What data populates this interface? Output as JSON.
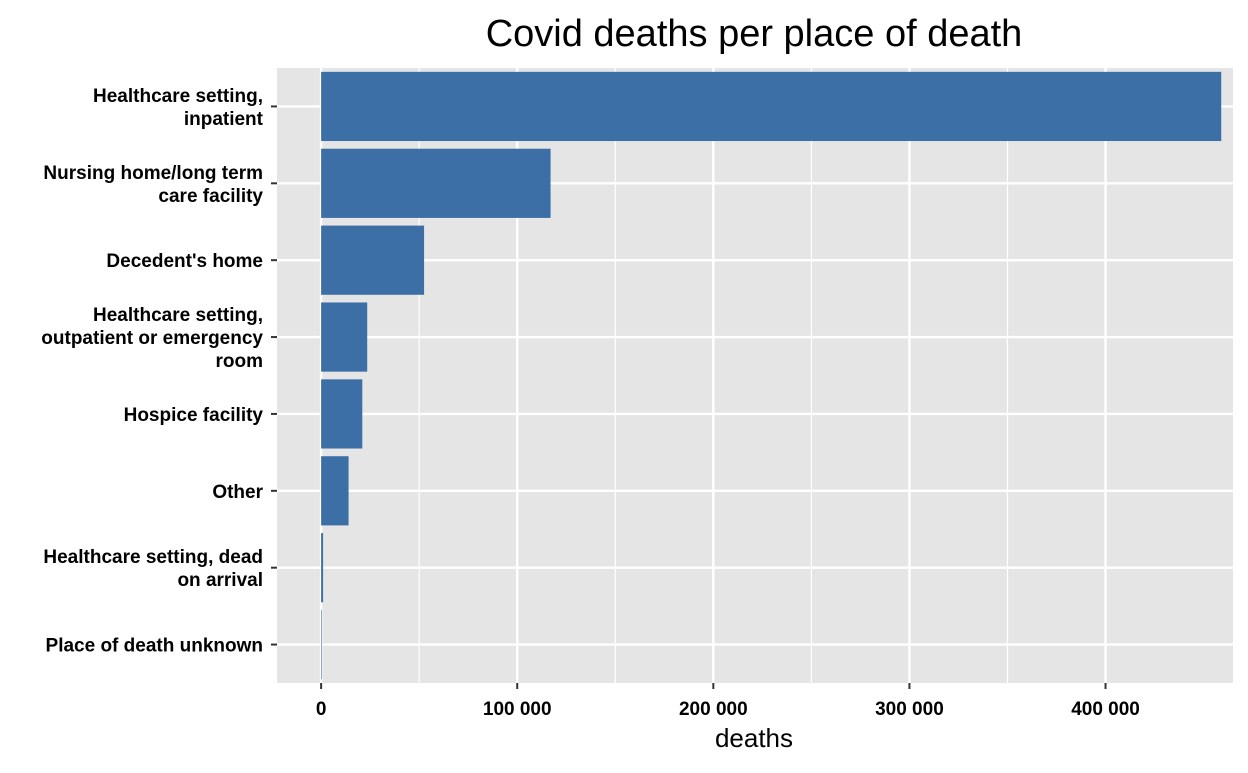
{
  "chart_data": {
    "type": "bar",
    "orientation": "horizontal",
    "title": "Covid deaths per place of death",
    "xlabel": "deaths",
    "ylabel": "",
    "xlim": [
      -22500,
      465000
    ],
    "x_ticks": [
      0,
      100000,
      200000,
      300000,
      400000
    ],
    "x_tick_labels": [
      "0",
      "100 000",
      "200 000",
      "300 000",
      "400 000"
    ],
    "categories": [
      [
        "Healthcare setting,",
        "inpatient"
      ],
      [
        "Nursing home/long term",
        "care facility"
      ],
      [
        "Decedent's home"
      ],
      [
        "Healthcare setting,",
        "outpatient or emergency",
        "room"
      ],
      [
        "Hospice facility"
      ],
      [
        "Other"
      ],
      [
        "Healthcare setting, dead",
        "on arrival"
      ],
      [
        "Place of death unknown"
      ]
    ],
    "values": [
      459000,
      117000,
      52500,
      23500,
      21000,
      14000,
      1000,
      300
    ],
    "bar_color": "#3B6FA6",
    "panel_background": "#E5E5E5",
    "grid": true,
    "legend": "none"
  }
}
